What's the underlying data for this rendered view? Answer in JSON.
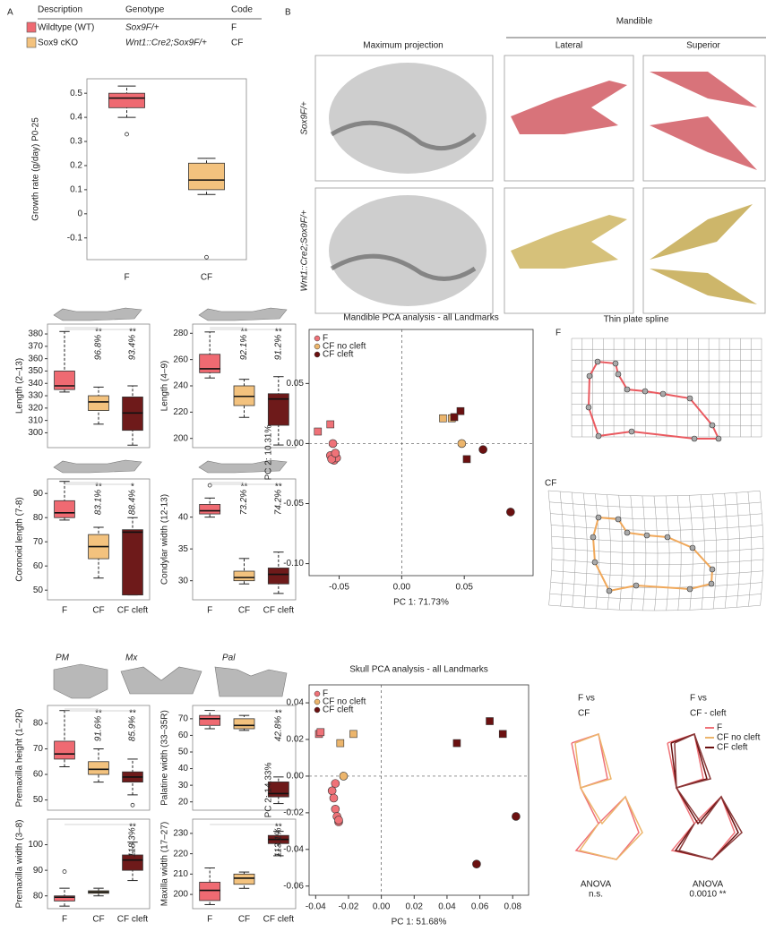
{
  "panel_labels": [
    "A",
    "B"
  ],
  "legend_table": {
    "headers": [
      "Description",
      "Genotype",
      "Code"
    ],
    "rows": [
      {
        "color": "#ef6a72",
        "cells": [
          "Wildtype (WT)",
          "Sox9F/+",
          "F"
        ]
      },
      {
        "color": "#f3c27e",
        "cells": [
          "Sox9 cKO",
          "Wnt1::Cre2;Sox9F/+",
          "CF"
        ]
      }
    ]
  },
  "images": {
    "columns": [
      "Maximum projection",
      "Lateral",
      "Superior"
    ],
    "group": "Mandible",
    "rows": [
      "Sox9F/+",
      "Wnt1::Cre2;Sox9F/+"
    ]
  },
  "icon_labels": [
    "PM",
    "Mx",
    "Pal"
  ],
  "chart_data": [
    {
      "type": "box",
      "ylabel": "Growth rate (g/day) P0-25",
      "categories": [
        "F",
        "CF"
      ],
      "ylim": [
        -0.19,
        0.56
      ],
      "yticks": [
        -0.1,
        0,
        0.1,
        0.2,
        0.3,
        0.4,
        0.5
      ],
      "boxes": [
        {
          "color": "#ef6a72",
          "min": 0.4,
          "q1": 0.44,
          "median": 0.48,
          "q3": 0.5,
          "max": 0.53,
          "outliers": [
            0.33
          ]
        },
        {
          "color": "#f3c27e",
          "min": 0.08,
          "q1": 0.1,
          "median": 0.14,
          "q3": 0.21,
          "max": 0.23,
          "outliers": [
            -0.18
          ]
        }
      ]
    },
    {
      "type": "box",
      "ylabel": "Length (2–13)",
      "ylim": [
        288,
        388
      ],
      "yticks": [
        300,
        310,
        320,
        330,
        340,
        350,
        360,
        370,
        380
      ],
      "value_labels": [
        null,
        "96.8%",
        "93.4%"
      ],
      "significance": [
        null,
        "**",
        "**"
      ],
      "boxes": [
        {
          "color": "#ef6a72",
          "min": 333,
          "q1": 335,
          "median": 338,
          "q3": 350,
          "max": 382
        },
        {
          "color": "#f3c27e",
          "min": 307,
          "q1": 318,
          "median": 325,
          "q3": 330,
          "max": 337
        },
        {
          "color": "#6e1a1a",
          "min": 290,
          "q1": 302,
          "median": 316,
          "q3": 329,
          "max": 338
        }
      ]
    },
    {
      "type": "box",
      "ylabel": "Length (4–9)",
      "ylim": [
        193,
        287
      ],
      "yticks": [
        200,
        220,
        240,
        260,
        280
      ],
      "value_labels": [
        null,
        "92.1%",
        "91.2%"
      ],
      "significance": [
        null,
        "**",
        "**"
      ],
      "boxes": [
        {
          "color": "#ef6a72",
          "min": 246,
          "q1": 250,
          "median": 253,
          "q3": 264,
          "max": 281
        },
        {
          "color": "#f3c27e",
          "min": 216,
          "q1": 225,
          "median": 232,
          "q3": 240,
          "max": 245
        },
        {
          "color": "#6e1a1a",
          "min": 195,
          "q1": 210,
          "median": 230,
          "q3": 234,
          "max": 247
        }
      ]
    },
    {
      "type": "box",
      "ylabel": "Coronoid length (7-8)",
      "categories": [
        "F",
        "CF",
        "CF cleft"
      ],
      "ylim": [
        46,
        96
      ],
      "yticks": [
        50,
        60,
        70,
        80,
        90
      ],
      "value_labels": [
        null,
        "83.1%",
        "88.4%"
      ],
      "significance": [
        null,
        "**",
        "*"
      ],
      "boxes": [
        {
          "color": "#ef6a72",
          "min": 79,
          "q1": 80,
          "median": 82,
          "q3": 87,
          "max": 95
        },
        {
          "color": "#f3c27e",
          "min": 55,
          "q1": 63,
          "median": 68,
          "q3": 73,
          "max": 76
        },
        {
          "color": "#6e1a1a",
          "min": 48,
          "q1": 48,
          "median": 74,
          "q3": 75,
          "max": 80
        }
      ]
    },
    {
      "type": "box",
      "ylabel": "Condylar width (12-13)",
      "categories": [
        "F",
        "CF",
        "CF cleft"
      ],
      "ylim": [
        27,
        46
      ],
      "yticks": [
        30,
        35,
        40
      ],
      "value_labels": [
        null,
        "73.2%",
        "74.2%"
      ],
      "significance": [
        null,
        "**",
        "**"
      ],
      "boxes": [
        {
          "color": "#ef6a72",
          "min": 40,
          "q1": 40.5,
          "median": 41,
          "q3": 42,
          "max": 43,
          "outliers": [
            45
          ]
        },
        {
          "color": "#f3c27e",
          "min": 29.5,
          "q1": 30,
          "median": 30.5,
          "q3": 31.5,
          "max": 33.5
        },
        {
          "color": "#6e1a1a",
          "min": 28,
          "q1": 29.5,
          "median": 31,
          "q3": 32,
          "max": 34.5
        }
      ]
    },
    {
      "type": "box",
      "ylabel": "Premaxilla height (1–2R)",
      "ylim": [
        46,
        87
      ],
      "yticks": [
        50,
        60,
        70,
        80
      ],
      "value_labels": [
        null,
        "91.6%",
        "85.9%"
      ],
      "significance": [
        null,
        "**",
        "**"
      ],
      "boxes": [
        {
          "color": "#ef6a72",
          "min": 63,
          "q1": 66,
          "median": 68,
          "q3": 73,
          "max": 85
        },
        {
          "color": "#f3c27e",
          "min": 57,
          "q1": 60,
          "median": 62,
          "q3": 65,
          "max": 70
        },
        {
          "color": "#6e1a1a",
          "min": 52,
          "q1": 57,
          "median": 59,
          "q3": 61,
          "max": 66,
          "outliers": [
            48
          ]
        }
      ]
    },
    {
      "type": "box",
      "ylabel": "Palatine width (33–35R)",
      "ylim": [
        15,
        78
      ],
      "yticks": [
        20,
        30,
        40,
        50,
        60,
        70
      ],
      "value_labels": [
        null,
        null,
        "42.8%"
      ],
      "significance": [
        null,
        null,
        "**"
      ],
      "boxes": [
        {
          "color": "#ef6a72",
          "min": 64,
          "q1": 66,
          "median": 70,
          "q3": 72,
          "max": 75
        },
        {
          "color": "#f3c27e",
          "min": 63,
          "q1": 64,
          "median": 66,
          "q3": 70,
          "max": 72
        },
        {
          "color": "#6e1a1a",
          "min": 19,
          "q1": 23,
          "median": 25,
          "q3": 32,
          "max": 35
        }
      ]
    },
    {
      "type": "box",
      "ylabel": "Premaxilla width (3–8)",
      "categories": [
        "F",
        "CF",
        "CF cleft"
      ],
      "ylim": [
        75,
        110
      ],
      "yticks": [
        80,
        90,
        100
      ],
      "value_labels": [
        null,
        null,
        "118.3%"
      ],
      "significance": [
        null,
        null,
        "**"
      ],
      "boxes": [
        {
          "color": "#ef6a72",
          "min": 76,
          "q1": 78,
          "median": 79.5,
          "q3": 80,
          "max": 83,
          "outliers": [
            89.5
          ]
        },
        {
          "color": "#f3c27e",
          "min": 80,
          "q1": 81,
          "median": 81.5,
          "q3": 82,
          "max": 83
        },
        {
          "color": "#6e1a1a",
          "min": 86,
          "q1": 90,
          "median": 94,
          "q3": 96,
          "max": 101
        }
      ]
    },
    {
      "type": "box",
      "ylabel": "Maxilla width (17–27)",
      "categories": [
        "F",
        "CF",
        "CF cleft"
      ],
      "ylim": [
        193,
        237
      ],
      "yticks": [
        200,
        210,
        220,
        230
      ],
      "value_labels": [
        null,
        null,
        "113.1%"
      ],
      "significance": [
        null,
        null,
        "**"
      ],
      "boxes": [
        {
          "color": "#ef6a72",
          "min": 195,
          "q1": 197,
          "median": 202,
          "q3": 206,
          "max": 213
        },
        {
          "color": "#f3c27e",
          "min": 203,
          "q1": 205,
          "median": 208,
          "q3": 210,
          "max": 211
        },
        {
          "color": "#6e1a1a",
          "min": 219,
          "q1": 225,
          "median": 227,
          "q3": 229,
          "max": 231
        }
      ]
    },
    {
      "type": "scatter",
      "title": "Mandible PCA analysis - all Landmarks",
      "xlabel": "PC 1: 71.73%",
      "ylabel": "PC 2: 10.31%",
      "xlim": [
        -0.074,
        0.105
      ],
      "ylim": [
        -0.11,
        0.095
      ],
      "xticks": [
        -0.05,
        {
          "value": 0,
          "label": "0.00"
        },
        0.05
      ],
      "yticks": [
        0.05,
        {
          "value": 0,
          "label": "0.00"
        },
        -0.05,
        {
          "value": -0.1,
          "label": "-0.10"
        }
      ],
      "series": [
        {
          "name": "F",
          "color": "#ef7278",
          "x": [
            -0.067,
            -0.057,
            -0.055,
            -0.057,
            -0.054,
            -0.052,
            -0.056,
            -0.053
          ],
          "y": [
            0.01,
            0.016,
            0,
            -0.01,
            -0.014,
            -0.012,
            -0.013,
            -0.008
          ],
          "shapes": [
            "square",
            "square",
            "circle",
            "circle",
            "circle",
            "circle",
            "circle",
            "circle"
          ]
        },
        {
          "name": "CF no cleft",
          "color": "#ecb56c",
          "x": [
            0.033,
            0.04,
            0.048
          ],
          "y": [
            0.021,
            0.021,
            0
          ],
          "shapes": [
            "square",
            "square",
            "circle"
          ]
        },
        {
          "name": "CF cleft",
          "color": "#6b1010",
          "x": [
            0.042,
            0.047,
            0.052,
            0.065,
            0.087
          ],
          "y": [
            0.022,
            0.027,
            -0.013,
            -0.005,
            -0.057
          ],
          "shapes": [
            "square",
            "square",
            "square",
            "circle",
            "circle"
          ]
        }
      ]
    },
    {
      "type": "scatter",
      "title": "Skull PCA analysis - all Landmarks",
      "xlabel": "PC 1: 51.68%",
      "ylabel": "PC 2: 14.33%",
      "xlim": [
        -0.044,
        0.0897
      ],
      "ylim": [
        -0.065,
        0.0498
      ],
      "xticks": [
        -0.04,
        -0.02,
        {
          "value": 0,
          "label": "0.00"
        },
        0.02,
        0.04,
        0.06,
        0.08
      ],
      "yticks": [
        0.04,
        0.02,
        {
          "value": 0,
          "label": "0.00"
        },
        -0.02,
        -0.04,
        -0.06
      ],
      "series": [
        {
          "name": "F",
          "color": "#ef7278",
          "x": [
            -0.038,
            -0.037,
            -0.03,
            -0.028,
            -0.027,
            -0.026,
            -0.029,
            -0.028,
            -0.026
          ],
          "y": [
            0.023,
            0.024,
            -0.008,
            -0.018,
            -0.022,
            -0.025,
            -0.012,
            -0.004,
            -0.024
          ],
          "shapes": [
            "square",
            "square",
            "circle",
            "circle",
            "circle",
            "circle",
            "circle",
            "circle",
            "circle"
          ]
        },
        {
          "name": "CF no cleft",
          "color": "#ecb56c",
          "x": [
            -0.025,
            -0.017,
            -0.023
          ],
          "y": [
            0.018,
            0.023,
            0
          ],
          "shapes": [
            "square",
            "square",
            "circle"
          ]
        },
        {
          "name": "CF cleft",
          "color": "#6b1010",
          "x": [
            0.046,
            0.066,
            0.074,
            0.058,
            0.082
          ],
          "y": [
            0.018,
            0.03,
            0.023,
            -0.048,
            -0.022
          ],
          "shapes": [
            "square",
            "square",
            "square",
            "circle",
            "circle"
          ]
        }
      ]
    }
  ],
  "thin_plate_spline": {
    "title": "Thin plate spline",
    "panels": [
      "F",
      "CF"
    ]
  },
  "wireframes": {
    "titles": [
      [
        "F vs",
        "CF"
      ],
      [
        "F vs",
        "CF - cleft"
      ]
    ],
    "legend": [
      {
        "name": "F",
        "color": "#ef7278"
      },
      {
        "name": "CF no cleft",
        "color": "#ecb56c"
      },
      {
        "name": "CF cleft",
        "color": "#6b1010"
      }
    ],
    "anova": [
      [
        "ANOVA",
        "n.s."
      ],
      [
        "ANOVA",
        "0.0010 **"
      ]
    ]
  }
}
